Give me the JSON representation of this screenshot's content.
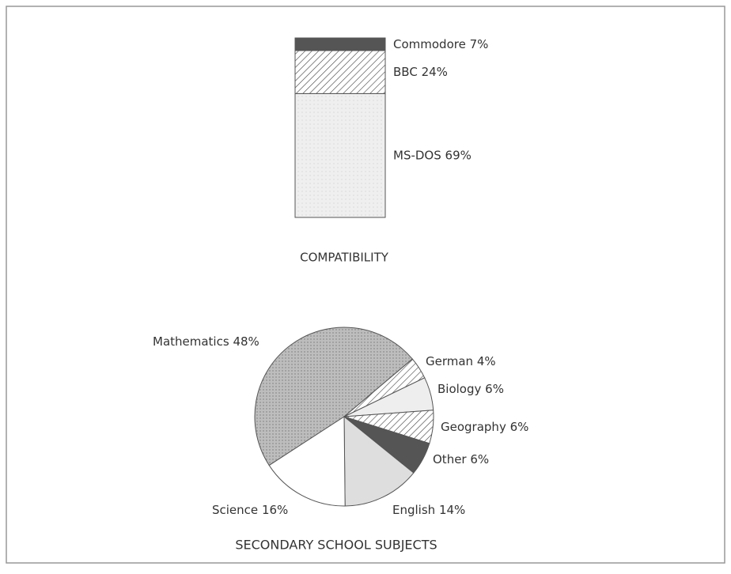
{
  "chart_data": [
    {
      "type": "stacked_bar",
      "title": "COMPATIBILITY",
      "categories": [
        null
      ],
      "series": [
        {
          "name": "MS-DOS",
          "color": "#efefef",
          "pattern": "dots",
          "values": [
            69
          ],
          "value_labels": [
            "69%"
          ]
        },
        {
          "name": "BBC",
          "color": "#ffffff",
          "pattern": "hatch",
          "values": [
            24
          ],
          "value_labels": [
            "24%"
          ]
        },
        {
          "name": "Commodore",
          "color": "#555555",
          "values": [
            7
          ],
          "value_labels": [
            "7%"
          ]
        }
      ]
    },
    {
      "type": "pie",
      "title": "SECONDARY SCHOOL SUBJECTS",
      "labels": [
        "Mathematics",
        "German",
        "Biology",
        "Geography",
        "Other",
        "English",
        "Science"
      ],
      "values": [
        48,
        4,
        6,
        6,
        6,
        14,
        16
      ],
      "value_labels": [
        "48%",
        "4%",
        "6%",
        "6%",
        "6%",
        "14%",
        "16%"
      ],
      "colors": [
        "#bdbdbd",
        "#ffffff",
        "#eeeeee",
        "#ffffff",
        "#555555",
        "#dedede",
        "#ffffff"
      ],
      "patterns": [
        "dots",
        "hatch",
        null,
        "hatch",
        null,
        null,
        null
      ]
    }
  ]
}
